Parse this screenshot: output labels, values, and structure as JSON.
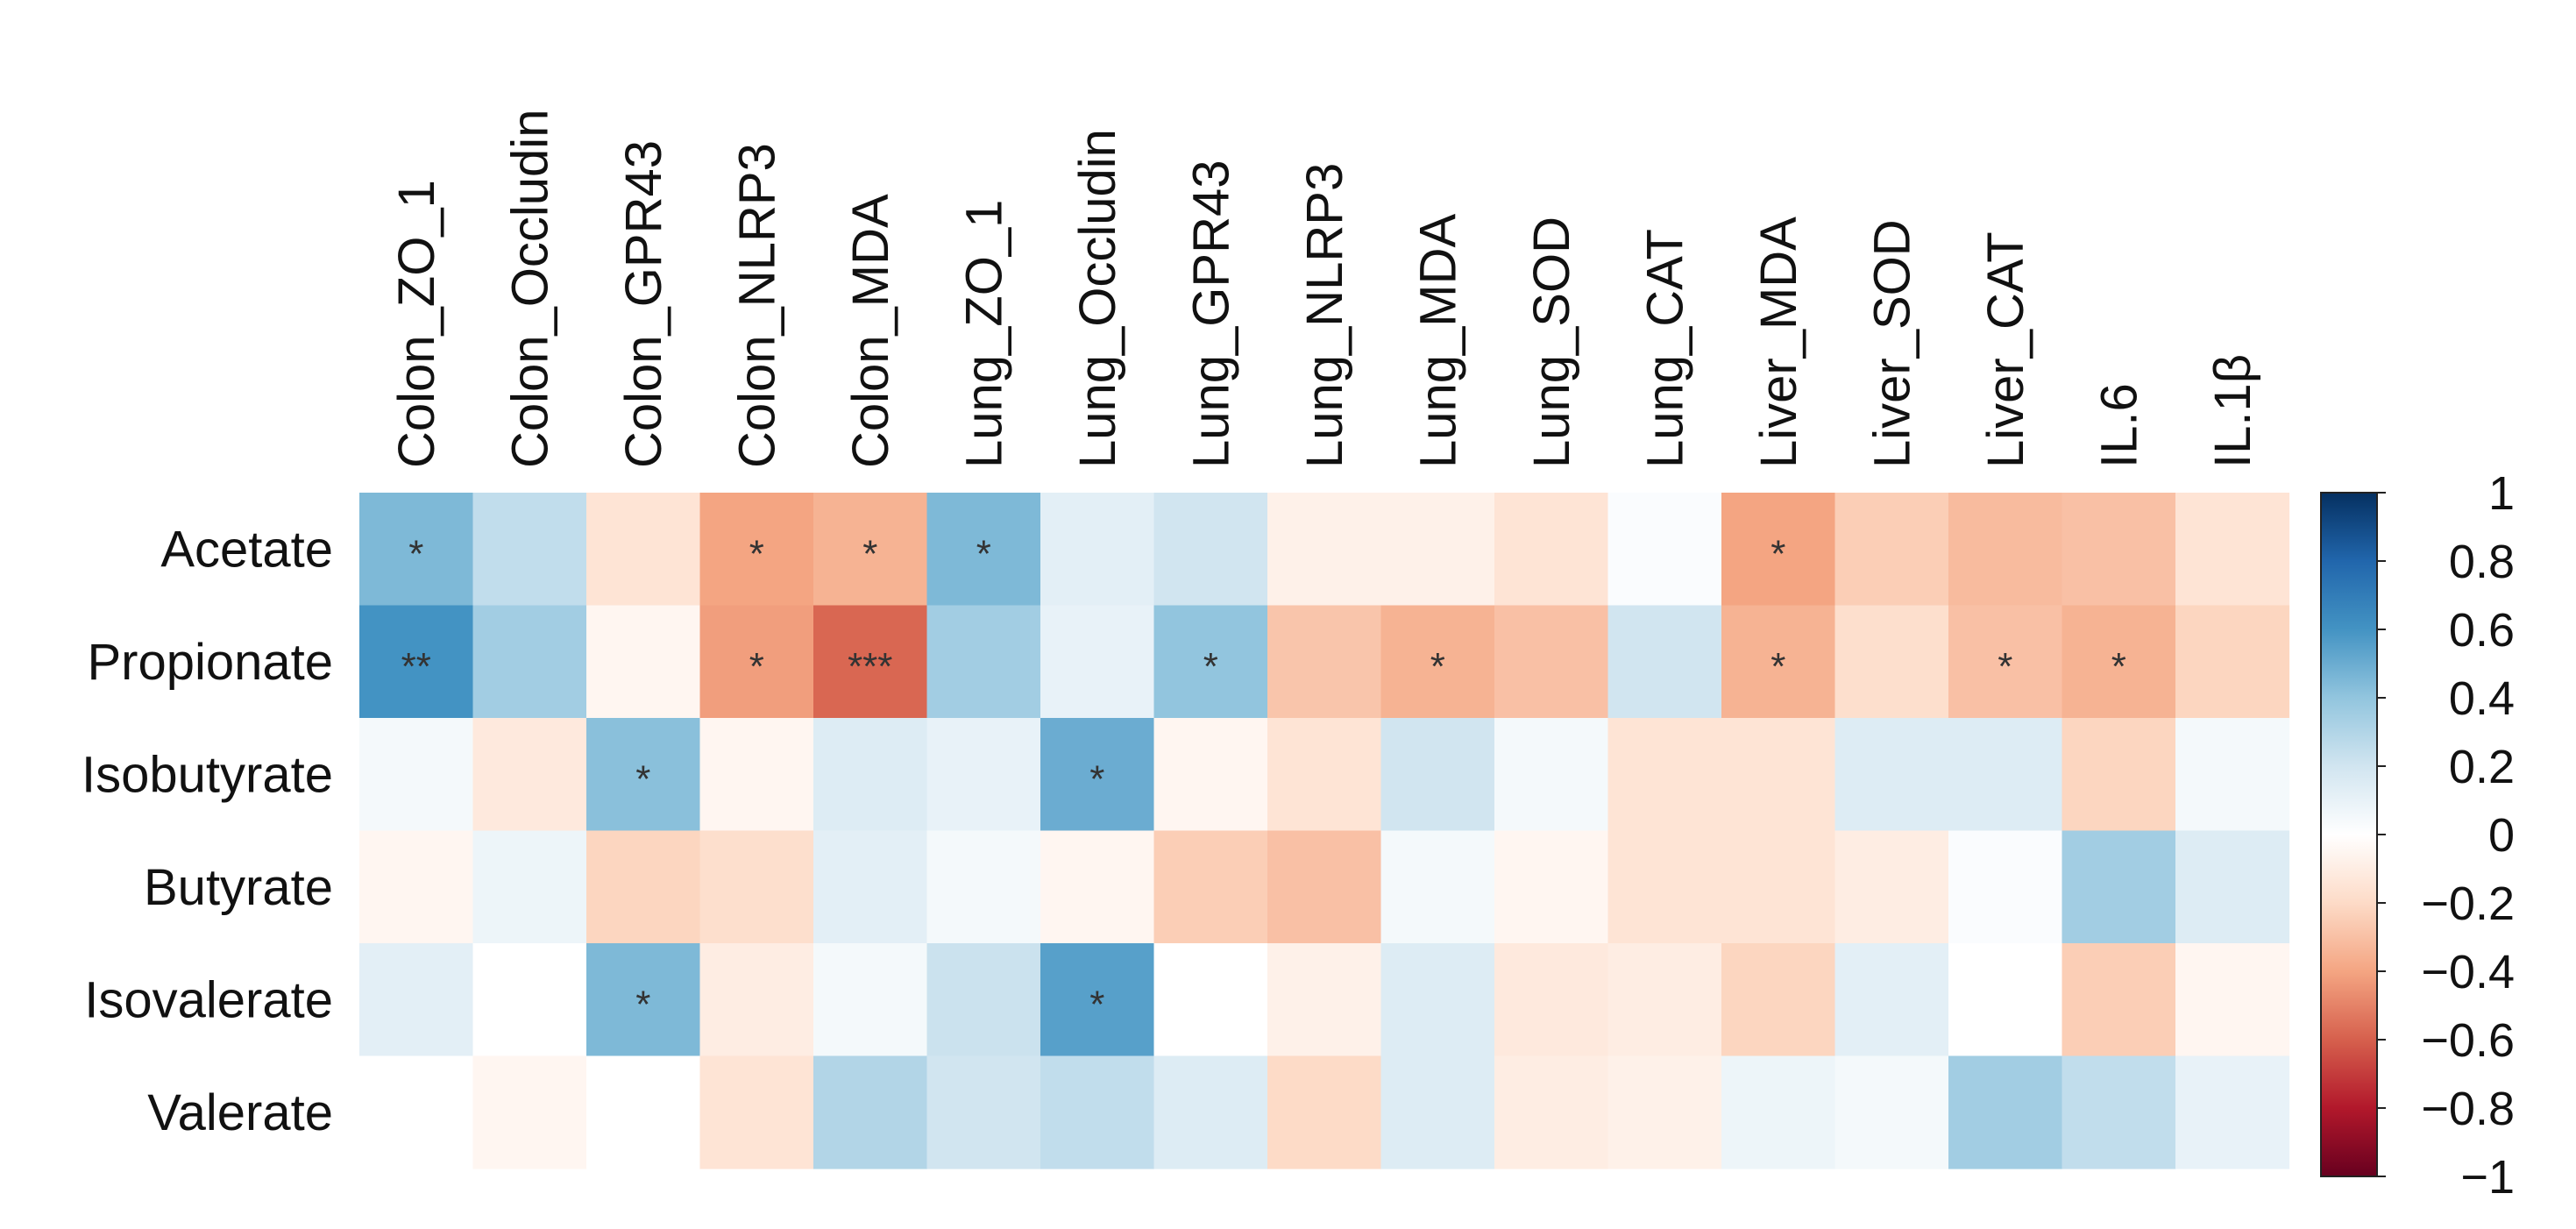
{
  "chart_data": {
    "type": "heatmap",
    "columns": [
      "Colon_ZO_1",
      "Colon_Occludin",
      "Colon_GPR43",
      "Colon_NLRP3",
      "Colon_MDA",
      "Lung_ZO_1",
      "Lung_Occludin",
      "Lung_GPR43",
      "Lung_NLRP3",
      "Lung_MDA",
      "Lung_SOD",
      "Lung_CAT",
      "Liver_MDA",
      "Liver_SOD",
      "Liver_CAT",
      "IL.6",
      "IL.1β"
    ],
    "rows": [
      "Acetate",
      "Propionate",
      "Isobutyrate",
      "Butyrate",
      "Isovalerate",
      "Valerate"
    ],
    "values": [
      [
        0.45,
        0.25,
        -0.15,
        -0.4,
        -0.35,
        0.45,
        0.12,
        0.2,
        -0.08,
        -0.08,
        -0.15,
        0.02,
        -0.4,
        -0.25,
        -0.32,
        -0.3,
        -0.15
      ],
      [
        0.6,
        0.35,
        -0.05,
        -0.42,
        -0.58,
        0.35,
        0.1,
        0.4,
        -0.28,
        -0.35,
        -0.3,
        0.2,
        -0.35,
        -0.18,
        -0.3,
        -0.35,
        -0.22
      ],
      [
        0.05,
        -0.12,
        0.42,
        -0.05,
        0.15,
        0.1,
        0.5,
        -0.05,
        -0.15,
        0.2,
        0.05,
        -0.15,
        -0.15,
        0.15,
        0.15,
        -0.22,
        0.05
      ],
      [
        -0.05,
        0.08,
        -0.22,
        -0.18,
        0.12,
        0.05,
        -0.05,
        -0.25,
        -0.3,
        0.05,
        -0.05,
        -0.15,
        -0.15,
        -0.1,
        0.02,
        0.35,
        0.15
      ],
      [
        0.12,
        0.0,
        0.45,
        -0.1,
        0.05,
        0.22,
        0.55,
        0.0,
        -0.08,
        0.15,
        -0.12,
        -0.1,
        -0.22,
        0.12,
        0.0,
        -0.25,
        -0.05
      ],
      [
        0.0,
        -0.05,
        0.0,
        -0.15,
        0.3,
        0.2,
        0.25,
        0.15,
        -0.2,
        0.15,
        -0.1,
        -0.08,
        0.08,
        0.05,
        0.35,
        0.25,
        0.1
      ]
    ],
    "significance": [
      [
        "*",
        "",
        "",
        "*",
        "*",
        "*",
        "",
        "",
        "",
        "",
        "",
        "",
        "*",
        "",
        "",
        "",
        ""
      ],
      [
        "**",
        "",
        "",
        "*",
        "***",
        "",
        "",
        "*",
        "",
        "*",
        "",
        "",
        "*",
        "",
        "*",
        "*",
        ""
      ],
      [
        "",
        "",
        "*",
        "",
        "",
        "",
        "*",
        "",
        "",
        "",
        "",
        "",
        "",
        "",
        "",
        "",
        ""
      ],
      [
        "",
        "",
        "",
        "",
        "",
        "",
        "",
        "",
        "",
        "",
        "",
        "",
        "",
        "",
        "",
        "",
        ""
      ],
      [
        "",
        "",
        "*",
        "",
        "",
        "",
        "*",
        "",
        "",
        "",
        "",
        "",
        "",
        "",
        "",
        "",
        ""
      ],
      [
        "",
        "",
        "",
        "",
        "",
        "",
        "",
        "",
        "",
        "",
        "",
        "",
        "",
        "",
        "",
        "",
        ""
      ]
    ],
    "colorbar": {
      "range": [
        -1,
        1
      ],
      "ticks": [
        1,
        0.8,
        0.6,
        0.4,
        0.2,
        0,
        -0.2,
        -0.4,
        -0.6,
        -0.8,
        -1
      ],
      "tick_labels": [
        "1",
        "0.8",
        "0.6",
        "0.4",
        "0.2",
        "0",
        "−0.2",
        "−0.4",
        "−0.6",
        "−0.8",
        "−1"
      ],
      "colors": [
        "#67001f",
        "#b2182b",
        "#d6604d",
        "#f4a582",
        "#fddbc7",
        "#ffffff",
        "#d1e5f0",
        "#92c5de",
        "#4393c3",
        "#2166ac",
        "#053061"
      ]
    }
  }
}
